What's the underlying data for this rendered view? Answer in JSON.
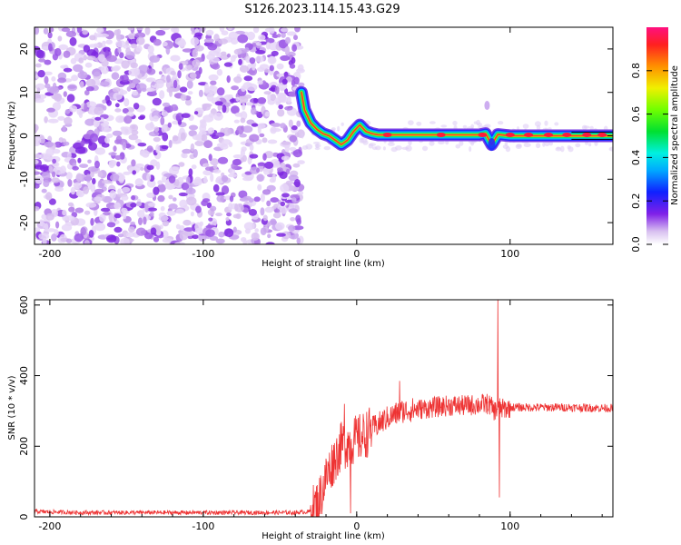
{
  "title": "S126.2023.114.15.43.G29",
  "chart_data": [
    {
      "type": "heatmap",
      "xlabel": "Height of straight line (km)",
      "ylabel": "Frequency (Hz)",
      "xlim": [
        -210,
        167
      ],
      "ylim": [
        -25,
        25
      ],
      "xticks": [
        -200,
        -100,
        0,
        100
      ],
      "yticks": [
        -20,
        -10,
        0,
        10,
        20
      ],
      "colorbar": {
        "label": "Normalized spectral amplitude",
        "range": [
          0,
          1
        ],
        "ticks": [
          "0.0",
          "0.2",
          "0.4",
          "0.6",
          "0.8"
        ]
      },
      "signal_trace": {
        "x": [
          -36,
          -34,
          -30,
          -26,
          -22,
          -18,
          -14,
          -10,
          -6,
          -2,
          2,
          6,
          10,
          14,
          20,
          40,
          60,
          80,
          84,
          88,
          92,
          100,
          120,
          140,
          160,
          167
        ],
        "y": [
          10,
          6,
          3,
          1.5,
          0.5,
          0,
          -1,
          -2,
          -1,
          1,
          2.5,
          1,
          0.5,
          0.2,
          0.2,
          0.2,
          0.2,
          0.2,
          0.5,
          -2,
          0.3,
          0,
          0,
          0,
          0,
          0
        ]
      },
      "noise_region_x": [
        -210,
        -36
      ]
    },
    {
      "type": "line",
      "xlabel": "Height of straight line (km)",
      "ylabel": "SNR (10 * v/v)",
      "xlim": [
        -210,
        167
      ],
      "ylim": [
        0,
        615
      ],
      "xticks": [
        -200,
        -100,
        0,
        100
      ],
      "yticks": [
        0,
        200,
        400,
        600
      ],
      "series": [
        {
          "color": "#ee3333",
          "x": [
            -210,
            -180,
            -150,
            -120,
            -90,
            -60,
            -40,
            -30,
            -25,
            -20,
            -15,
            -10,
            -5,
            0,
            5,
            10,
            20,
            30,
            40,
            50,
            60,
            70,
            80,
            86,
            90,
            93,
            95,
            100,
            120,
            140,
            160,
            167
          ],
          "y": [
            15,
            12,
            12,
            12,
            12,
            12,
            12,
            15,
            40,
            110,
            160,
            200,
            210,
            220,
            230,
            250,
            280,
            300,
            305,
            310,
            315,
            315,
            318,
            320,
            300,
            310,
            305,
            310,
            310,
            310,
            308,
            308
          ],
          "spikes": [
            {
              "x": -8,
              "y": 320
            },
            {
              "x": -4,
              "y": 10
            },
            {
              "x": 28,
              "y": 385
            },
            {
              "x": 92,
              "y": 615
            },
            {
              "x": 93,
              "y": 55
            }
          ]
        }
      ]
    }
  ]
}
